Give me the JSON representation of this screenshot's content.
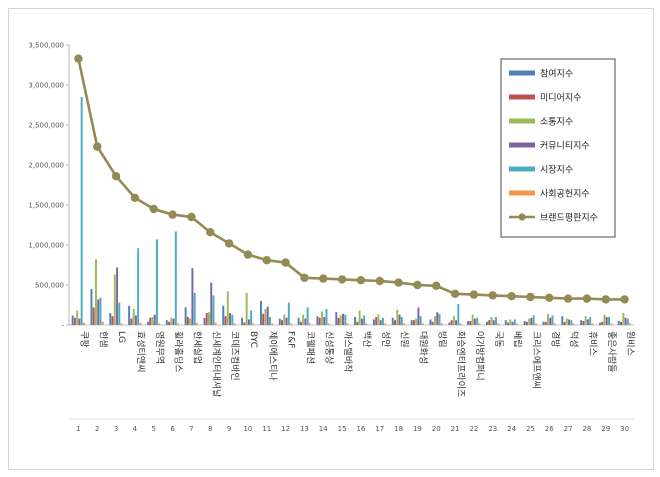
{
  "chart_data": {
    "type": "bar",
    "title": "",
    "xlabel": "",
    "ylabel": "",
    "ylim": [
      0,
      3500000
    ],
    "yticks": [
      0,
      500000,
      1000000,
      1500000,
      2000000,
      2500000,
      3000000,
      3500000
    ],
    "ytick_labels": [
      "-",
      "500,000",
      "1,000,000",
      "1,500,000",
      "2,000,000",
      "2,500,000",
      "3,000,000",
      "3,500,000"
    ],
    "grid": false,
    "legend_position": "top-right",
    "categories": [
      "쿠팡",
      "한샘",
      "LG",
      "효성티앤씨",
      "영원무역",
      "휠라홀딩스",
      "한세실업",
      "신세계인터내셔날",
      "코데즈컴바인",
      "BYC",
      "제이에스티나",
      "F&F",
      "코웰패션",
      "신성통상",
      "까스텔바작",
      "백산",
      "성안",
      "신원",
      "대원화성",
      "방림",
      "화승엔터프라이즈",
      "아가방컴퍼니",
      "국동",
      "베립",
      "크리스에프앤씨",
      "경방",
      "덕성",
      "휴비스",
      "좋은사람들",
      "원비스"
    ],
    "ranks": [
      "1",
      "2",
      "3",
      "4",
      "5",
      "6",
      "7",
      "8",
      "9",
      "10",
      "11",
      "12",
      "13",
      "14",
      "15",
      "16",
      "17",
      "18",
      "19",
      "20",
      "21",
      "22",
      "23",
      "24",
      "25",
      "26",
      "27",
      "28",
      "29",
      "30"
    ],
    "series": [
      {
        "name": "참여지수",
        "color": "#4f81bd",
        "values": [
          120000,
          450000,
          150000,
          240000,
          40000,
          60000,
          220000,
          90000,
          240000,
          90000,
          300000,
          80000,
          90000,
          110000,
          160000,
          100000,
          70000,
          90000,
          60000,
          70000,
          30000,
          50000,
          40000,
          60000,
          50000,
          40000,
          110000,
          60000,
          30000,
          50000
        ]
      },
      {
        "name": "미디어지수",
        "color": "#c0504d",
        "values": [
          90000,
          220000,
          110000,
          80000,
          90000,
          40000,
          100000,
          150000,
          110000,
          30000,
          140000,
          60000,
          40000,
          90000,
          90000,
          40000,
          100000,
          60000,
          60000,
          40000,
          60000,
          50000,
          60000,
          30000,
          40000,
          40000,
          40000,
          50000,
          40000,
          40000
        ]
      },
      {
        "name": "소통지수",
        "color": "#9bbb59",
        "values": [
          180000,
          820000,
          630000,
          200000,
          100000,
          90000,
          80000,
          160000,
          420000,
          400000,
          200000,
          130000,
          130000,
          170000,
          120000,
          180000,
          130000,
          190000,
          80000,
          110000,
          110000,
          130000,
          100000,
          70000,
          80000,
          140000,
          80000,
          110000,
          130000,
          150000
        ]
      },
      {
        "name": "커뮤니티지수",
        "color": "#8064a2",
        "values": [
          80000,
          320000,
          720000,
          120000,
          130000,
          80000,
          710000,
          530000,
          150000,
          70000,
          230000,
          90000,
          80000,
          100000,
          140000,
          80000,
          60000,
          130000,
          220000,
          160000,
          60000,
          80000,
          60000,
          40000,
          90000,
          90000,
          70000,
          70000,
          100000,
          90000
        ]
      },
      {
        "name": "시장지수",
        "color": "#4bacc6",
        "values": [
          2850000,
          340000,
          280000,
          960000,
          1070000,
          1170000,
          400000,
          370000,
          130000,
          180000,
          100000,
          280000,
          220000,
          200000,
          130000,
          120000,
          90000,
          100000,
          110000,
          140000,
          260000,
          90000,
          100000,
          70000,
          120000,
          120000,
          60000,
          100000,
          100000,
          80000
        ]
      },
      {
        "name": "사회공헌지수",
        "color": "#f79646",
        "values": [
          30000,
          40000,
          20000,
          30000,
          20000,
          20000,
          30000,
          30000,
          20000,
          20000,
          20000,
          20000,
          20000,
          20000,
          20000,
          20000,
          20000,
          20000,
          20000,
          20000,
          20000,
          20000,
          20000,
          20000,
          20000,
          20000,
          20000,
          20000,
          20000,
          20000
        ]
      },
      {
        "name": "브랜드평판지수",
        "color": "#948a54",
        "type": "line",
        "values": [
          3330000,
          2230000,
          1860000,
          1590000,
          1450000,
          1380000,
          1350000,
          1160000,
          1020000,
          880000,
          810000,
          780000,
          590000,
          580000,
          570000,
          560000,
          550000,
          530000,
          500000,
          490000,
          390000,
          380000,
          370000,
          360000,
          350000,
          340000,
          330000,
          330000,
          320000,
          320000
        ]
      }
    ]
  }
}
